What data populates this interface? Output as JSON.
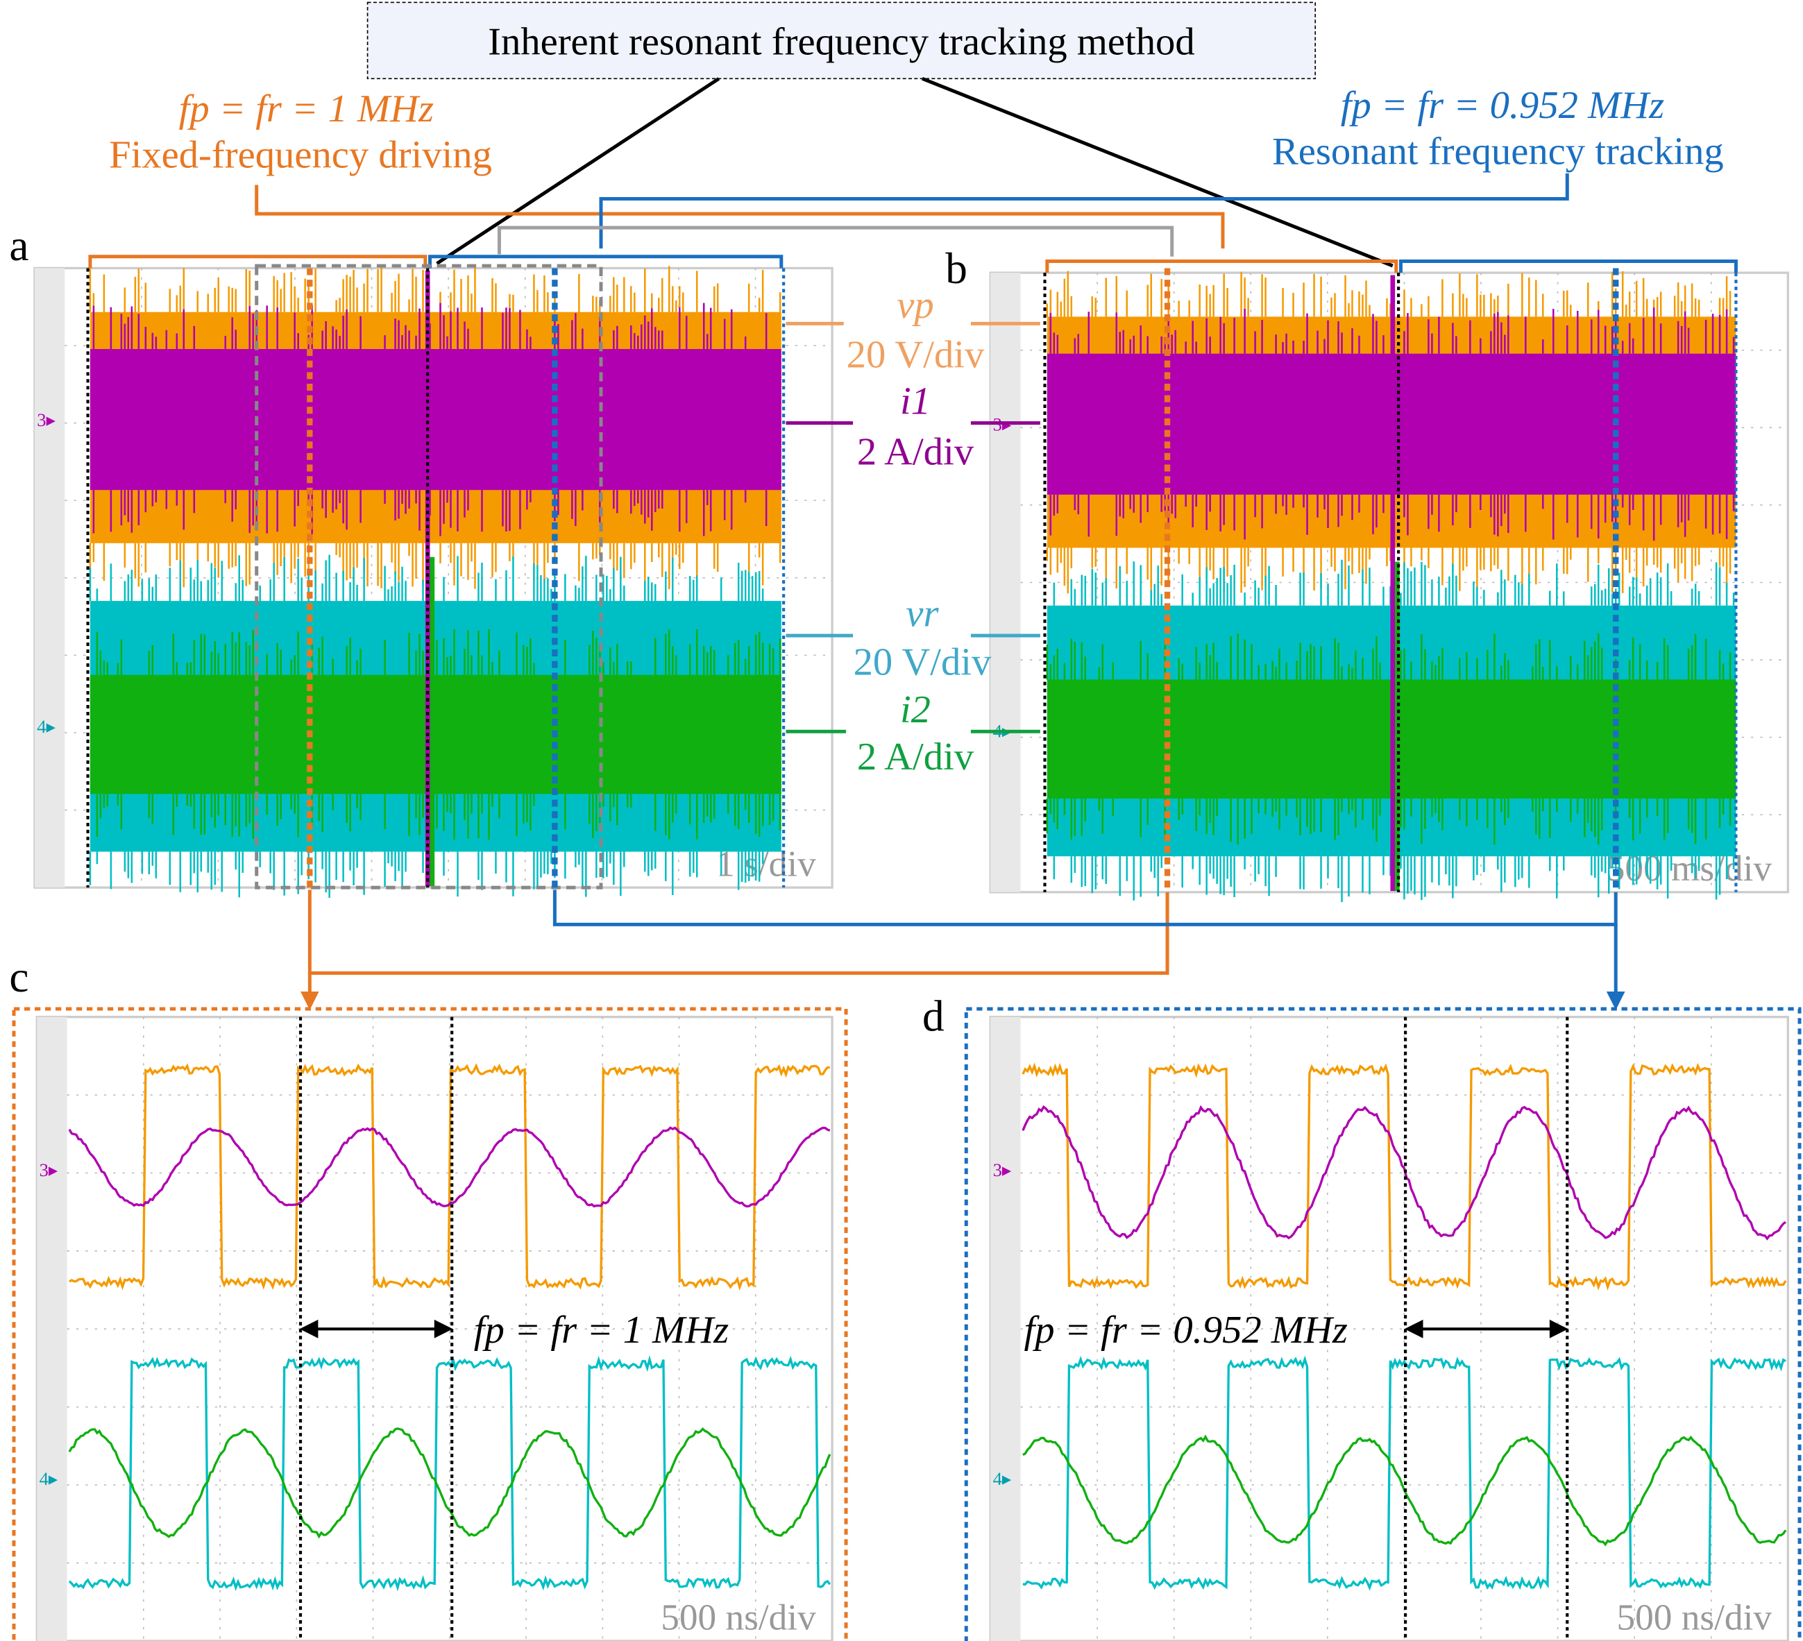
{
  "title": "Inherent resonant frequency tracking method",
  "left_caption": {
    "equation": "fp = fr = 1 MHz",
    "label": "Fixed-frequency driving"
  },
  "right_caption": {
    "equation": "fp = fr = 0.952 MHz",
    "label": "Resonant frequency tracking"
  },
  "panels": {
    "a": {
      "letter": "a",
      "timebase": "1 s/div"
    },
    "b": {
      "letter": "b",
      "timebase": "500 ms/div"
    },
    "c": {
      "letter": "c",
      "timebase": "500 ns/div",
      "annotation": "fp = fr = 1 MHz",
      "frequency_MHz": 1
    },
    "d": {
      "letter": "d",
      "timebase": "500 ns/div",
      "annotation": "fp = fr = 0.952 MHz",
      "frequency_MHz": 0.952
    }
  },
  "channels": [
    {
      "name": "vp",
      "scale": "20 V/div",
      "color": "#f59a00"
    },
    {
      "name": "i1",
      "scale": "2 A/div",
      "color": "#b000b0"
    },
    {
      "name": "vr",
      "scale": "20 V/div",
      "color": "#00bfc4"
    },
    {
      "name": "i2",
      "scale": "2 A/div",
      "color": "#10b010"
    }
  ],
  "channel_markers": [
    "3",
    "4"
  ],
  "colors": {
    "fixed": "#e87722",
    "tracking": "#1a6fc0",
    "grid": "#bdbdbd"
  }
}
